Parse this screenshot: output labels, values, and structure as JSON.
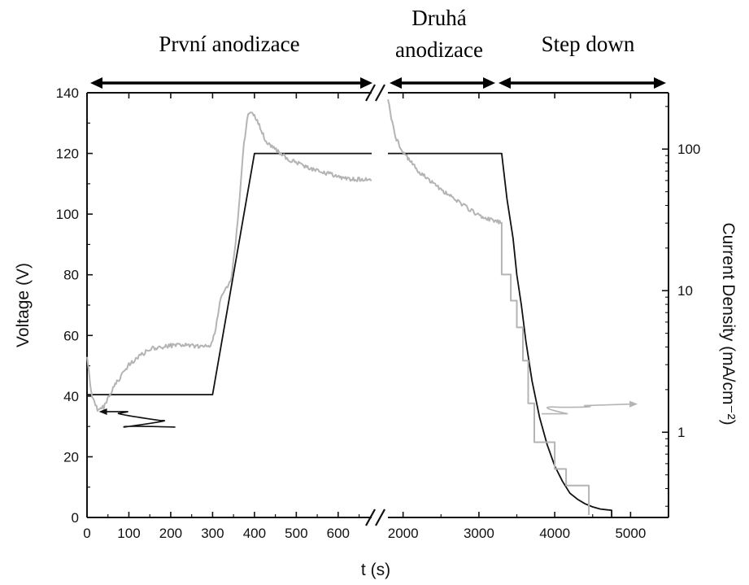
{
  "chart_data": {
    "type": "line",
    "section_labels": [
      {
        "text": "První anodizace",
        "span_from": 0,
        "span_to": 680
      },
      {
        "text": "Druhá",
        "text2": "anodizace",
        "span_from": 1800,
        "span_to": 3300
      },
      {
        "text": "Step down",
        "span_from": 3300,
        "span_to": 5500
      }
    ],
    "xlabel": "t (s)",
    "ylabel_left": "Voltage (V)",
    "ylabel_right": "Current Density (mA/cm⁻²)",
    "x_axis_broken": true,
    "x_segments": [
      {
        "xlim": [
          0,
          680
        ],
        "ticks": [
          0,
          100,
          200,
          300,
          400,
          500,
          600
        ]
      },
      {
        "xlim": [
          1800,
          5500
        ],
        "ticks": [
          2000,
          3000,
          4000,
          5000
        ]
      }
    ],
    "ylim_left": [
      0,
      140
    ],
    "yticks_left": [
      0,
      20,
      40,
      60,
      80,
      100,
      120,
      140
    ],
    "ylim_right_log": [
      0.25,
      250
    ],
    "yticks_right": [
      1,
      10,
      100
    ],
    "yticks_right_labels": [
      "1",
      "10",
      "100"
    ],
    "grid": false,
    "colors": {
      "voltage": "#111111",
      "current": "#b4b4b4",
      "axis": "#111111"
    },
    "series": [
      {
        "quantity": "voltage",
        "axis": "left",
        "color": "#111111",
        "points": [
          [
            0,
            40.5
          ],
          [
            300,
            40.5
          ],
          [
            400,
            120
          ],
          [
            680,
            120
          ],
          [
            1800,
            120
          ],
          [
            3300,
            120
          ],
          [
            3370,
            105
          ],
          [
            3450,
            92
          ],
          [
            3500,
            80
          ],
          [
            3560,
            70
          ],
          [
            3620,
            58
          ],
          [
            3700,
            45
          ],
          [
            3800,
            33
          ],
          [
            3900,
            24
          ],
          [
            4000,
            17
          ],
          [
            4100,
            12
          ],
          [
            4200,
            8
          ],
          [
            4300,
            6
          ],
          [
            4400,
            4.5
          ],
          [
            4500,
            3.5
          ],
          [
            4600,
            2.8
          ],
          [
            4700,
            2.5
          ],
          [
            4750,
            2.4
          ],
          [
            4750,
            0
          ]
        ]
      },
      {
        "quantity": "current density",
        "axis": "right",
        "color": "#b4b4b4",
        "points": [
          [
            0,
            3.5
          ],
          [
            10,
            1.9
          ],
          [
            25,
            1.45
          ],
          [
            40,
            1.5
          ],
          [
            60,
            2.0
          ],
          [
            100,
            3.0
          ],
          [
            150,
            3.9
          ],
          [
            200,
            4.1
          ],
          [
            250,
            4.1
          ],
          [
            295,
            4.0
          ],
          [
            305,
            5.0
          ],
          [
            320,
            9.0
          ],
          [
            345,
            12.0
          ],
          [
            360,
            30
          ],
          [
            375,
            110
          ],
          [
            385,
            180
          ],
          [
            400,
            175
          ],
          [
            430,
            110
          ],
          [
            480,
            85
          ],
          [
            550,
            70
          ],
          [
            620,
            62
          ],
          [
            680,
            60
          ],
          [
            1800,
            230
          ],
          [
            1830,
            180
          ],
          [
            1900,
            120
          ],
          [
            2000,
            95
          ],
          [
            2200,
            70
          ],
          [
            2500,
            52
          ],
          [
            2800,
            40
          ],
          [
            3000,
            34
          ],
          [
            3200,
            31
          ],
          [
            3300,
            30
          ],
          [
            3300,
            13
          ],
          [
            3420,
            13
          ],
          [
            3420,
            8.5
          ],
          [
            3500,
            8.5
          ],
          [
            3500,
            5.5
          ],
          [
            3580,
            5.5
          ],
          [
            3580,
            3.2
          ],
          [
            3650,
            3.2
          ],
          [
            3650,
            1.6
          ],
          [
            3730,
            1.6
          ],
          [
            3730,
            0.85
          ],
          [
            4000,
            0.85
          ],
          [
            4000,
            0.55
          ],
          [
            4150,
            0.55
          ],
          [
            4150,
            0.42
          ],
          [
            4450,
            0.42
          ],
          [
            4450,
            0.26
          ]
        ]
      }
    ],
    "annotations": [
      {
        "kind": "axis-pointer",
        "series": "voltage",
        "points_to": "left",
        "anchor": [
          40,
          33
        ]
      },
      {
        "kind": "axis-pointer",
        "series": "current density",
        "points_to": "right",
        "anchor": [
          4600,
          1.35
        ]
      }
    ]
  }
}
